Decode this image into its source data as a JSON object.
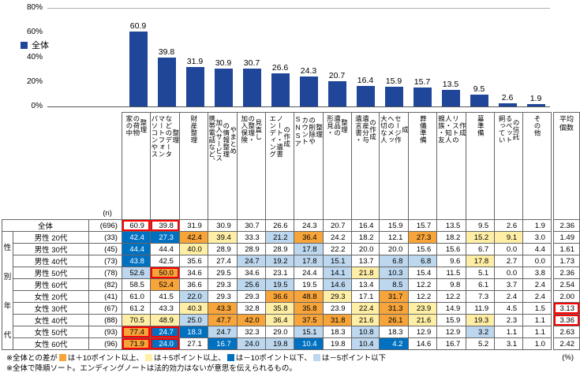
{
  "legend": {
    "label": "全体"
  },
  "colors": {
    "bar": "#1F4699",
    "plus10": "#F7A43A",
    "plus5": "#FFEFA6",
    "minus10": "#0070C0",
    "minus5": "#BDD7EE",
    "red_box": "#FF0000"
  },
  "chart_data": {
    "type": "bar",
    "title": "",
    "xlabel": "",
    "ylabel": "",
    "ylim": [
      0,
      80
    ],
    "yticks": [
      0,
      20,
      40,
      60,
      80
    ],
    "legend": [
      "全体"
    ],
    "categories": [
      "家の中の荷物整理",
      "パソコンやスマートフォンなどのデータ整理",
      "財産整理",
      "携帯電話など、加入サービスの情報整理やまとめ",
      "加入保険の整理・見直し",
      "エンディングノート・遺書の作成",
      "SNSアカウントの削除や整理",
      "形見・遺品の整理",
      "遺言書・遺産分与の作成",
      "大切な人へのメッセージ作成",
      "葬儀準備",
      "親族・友人・知人リストの作成",
      "墓準備",
      "飼っているペットの信託",
      "その他"
    ],
    "values": [
      60.9,
      39.8,
      31.9,
      30.9,
      30.7,
      26.6,
      24.3,
      20.7,
      16.4,
      15.9,
      15.7,
      13.5,
      9.5,
      2.6,
      1.9
    ]
  },
  "table": {
    "corner_header": "(n)",
    "avg_header": "平均\n個数",
    "group_label": "性別年代",
    "col_headers": [
      "家の中\nの荷物\n整理",
      "パソコンやス\nマートフォン\nなどのデータ\n整理",
      "財産整理",
      "携帯電話など、\n加入サービス\nの情報整理\nやまとめ",
      "加入保険\nの整理・\n見直し",
      "エンディング\nノート・遺書\nの作成",
      "SNSア\nカウント\nの削除や\n整理",
      "形見・\n遺品の\n整理",
      "遺言書・\n遺産分与\nの作成",
      "大切な人\nへのメッ\nセージ作\n成",
      "葬儀準備",
      "親族・友\n人・知人\nリストの\n作成",
      "墓準備",
      "飼ってい\nるペット\nの信託",
      "その他"
    ],
    "highlight_rules": {
      "plus10": 10,
      "plus5": 5,
      "minus10": -10,
      "minus5": -5
    },
    "rows": [
      {
        "label": "全体",
        "n": "(696)",
        "values": [
          "60.9",
          "39.8",
          "31.9",
          "30.9",
          "30.7",
          "26.6",
          "24.3",
          "20.7",
          "16.4",
          "15.9",
          "15.7",
          "13.5",
          "9.5",
          "2.6",
          "1.9"
        ],
        "avg": "2.36"
      },
      {
        "label": "男性 20代",
        "n": "(33)",
        "values": [
          "42.4",
          "27.3",
          "42.4",
          "39.4",
          "33.3",
          "21.2",
          "36.4",
          "24.2",
          "18.2",
          "12.1",
          "27.3",
          "18.2",
          "15.2",
          "9.1",
          "3.0"
        ],
        "avg": "1.49"
      },
      {
        "label": "男性 30代",
        "n": "(45)",
        "values": [
          "44.4",
          "44.4",
          "40.0",
          "28.9",
          "28.9",
          "28.9",
          "17.8",
          "22.2",
          "20.0",
          "20.0",
          "15.6",
          "15.6",
          "6.7",
          "0.0",
          "4.4"
        ],
        "avg": "1.61"
      },
      {
        "label": "男性 40代",
        "n": "(73)",
        "values": [
          "43.8",
          "42.5",
          "35.6",
          "27.4",
          "24.7",
          "19.2",
          "17.8",
          "15.1",
          "13.7",
          "6.8",
          "6.8",
          "9.6",
          "17.8",
          "2.7",
          "0.0"
        ],
        "avg": "1.73"
      },
      {
        "label": "男性 50代",
        "n": "(78)",
        "values": [
          "52.6",
          "50.0",
          "34.6",
          "29.5",
          "34.6",
          "23.1",
          "24.4",
          "14.1",
          "21.8",
          "10.3",
          "15.4",
          "11.5",
          "5.1",
          "0.0",
          "3.8"
        ],
        "avg": "2.36"
      },
      {
        "label": "男性 60代",
        "n": "(82)",
        "values": [
          "58.5",
          "52.4",
          "36.6",
          "29.3",
          "25.6",
          "19.5",
          "19.5",
          "14.6",
          "13.4",
          "8.5",
          "12.2",
          "9.8",
          "6.1",
          "3.7",
          "2.4"
        ],
        "avg": "2.54"
      },
      {
        "label": "女性 20代",
        "n": "(41)",
        "values": [
          "61.0",
          "41.5",
          "22.0",
          "29.3",
          "29.3",
          "36.6",
          "48.8",
          "29.3",
          "17.1",
          "31.7",
          "12.2",
          "12.2",
          "7.3",
          "2.4",
          "2.4"
        ],
        "avg": "2.00"
      },
      {
        "label": "女性 30代",
        "n": "(67)",
        "values": [
          "61.2",
          "43.3",
          "40.3",
          "43.3",
          "32.8",
          "35.8",
          "35.8",
          "23.9",
          "22.4",
          "31.3",
          "23.9",
          "14.9",
          "11.9",
          "4.5",
          "1.5"
        ],
        "avg": "3.13"
      },
      {
        "label": "女性 40代",
        "n": "(88)",
        "values": [
          "70.5",
          "48.9",
          "25.0",
          "47.7",
          "42.0",
          "36.4",
          "37.5",
          "31.8",
          "21.6",
          "26.1",
          "21.6",
          "15.9",
          "19.3",
          "2.3",
          "1.1"
        ],
        "avg": "3.36"
      },
      {
        "label": "女性 50代",
        "n": "(93)",
        "values": [
          "77.4",
          "24.7",
          "18.3",
          "24.7",
          "32.3",
          "29.0",
          "15.1",
          "18.3",
          "10.8",
          "18.3",
          "12.9",
          "12.9",
          "3.2",
          "1.1",
          "1.1"
        ],
        "avg": "2.63"
      },
      {
        "label": "女性 60代",
        "n": "(96)",
        "values": [
          "71.9",
          "24.0",
          "27.1",
          "16.7",
          "24.0",
          "19.8",
          "10.4",
          "19.8",
          "10.4",
          "4.2",
          "14.6",
          "16.7",
          "5.2",
          "3.1",
          "1.0"
        ],
        "avg": "2.42"
      }
    ],
    "red_boxes": [
      [
        0,
        0
      ],
      [
        0,
        1
      ],
      [
        4,
        1
      ],
      [
        9,
        0
      ],
      [
        9,
        1
      ],
      [
        10,
        0
      ],
      [
        10,
        1
      ],
      [
        7,
        15
      ],
      [
        8,
        15
      ]
    ]
  },
  "footnotes": {
    "line1_parts": [
      {
        "t": "※全体との差が"
      },
      {
        "s": "plus10"
      },
      {
        "t": "は＋10ポイント以上、"
      },
      {
        "s": "plus5"
      },
      {
        "t": "は＋5ポイント以上、"
      },
      {
        "s": "minus10"
      },
      {
        "t": "は－10ポイント以下、"
      },
      {
        "s": "minus5"
      },
      {
        "t": "は－5ポイント以下"
      }
    ],
    "line2": "※全体で降順ソート。エンディングノートは法的効力はないが意思を伝えられるもの。",
    "percent": "(%)"
  }
}
